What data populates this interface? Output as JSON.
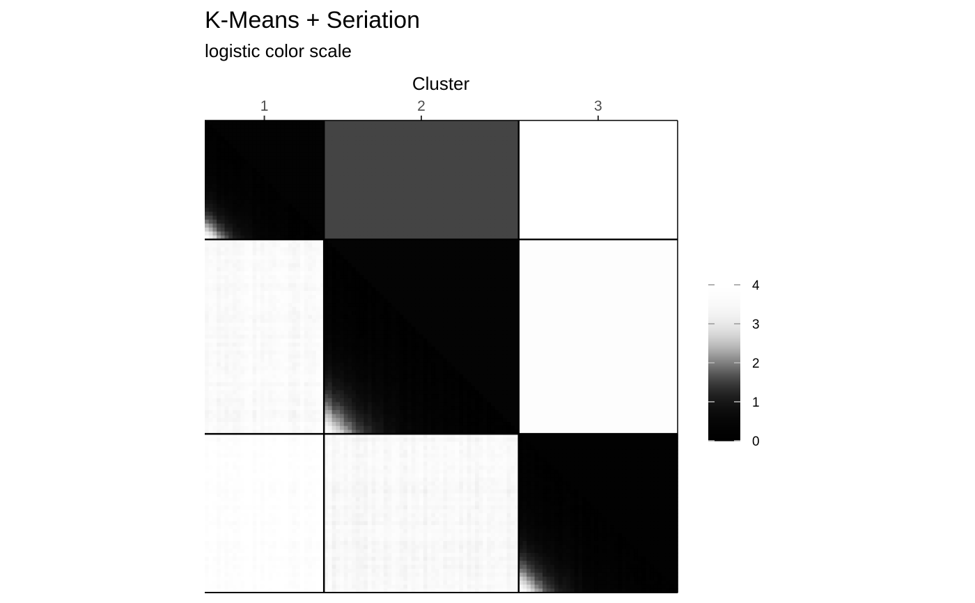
{
  "chart_data": {
    "type": "heatmap",
    "title": "K-Means + Seriation",
    "subtitle": "logistic color scale",
    "xlabel": "Cluster",
    "x_ticks": [
      "1",
      "2",
      "3"
    ],
    "clusters": [
      {
        "label": "1",
        "size": 30
      },
      {
        "label": "2",
        "size": 49
      },
      {
        "label": "3",
        "size": 40
      }
    ],
    "upper_triangle": "cluster average dissimilarity",
    "lower_triangle": "pairwise dissimilarity",
    "block_averages": [
      [
        0.3,
        1.55,
        4.0
      ],
      [
        3.6,
        0.35,
        3.8
      ],
      [
        3.9,
        3.5,
        0.25
      ]
    ],
    "color_scale": {
      "type": "logistic",
      "low_color": "#000000",
      "high_color": "#ffffff",
      "range": [
        0,
        4
      ],
      "breaks": [
        0,
        1,
        2,
        3,
        4
      ]
    },
    "grid": false,
    "legend_position": "right"
  }
}
